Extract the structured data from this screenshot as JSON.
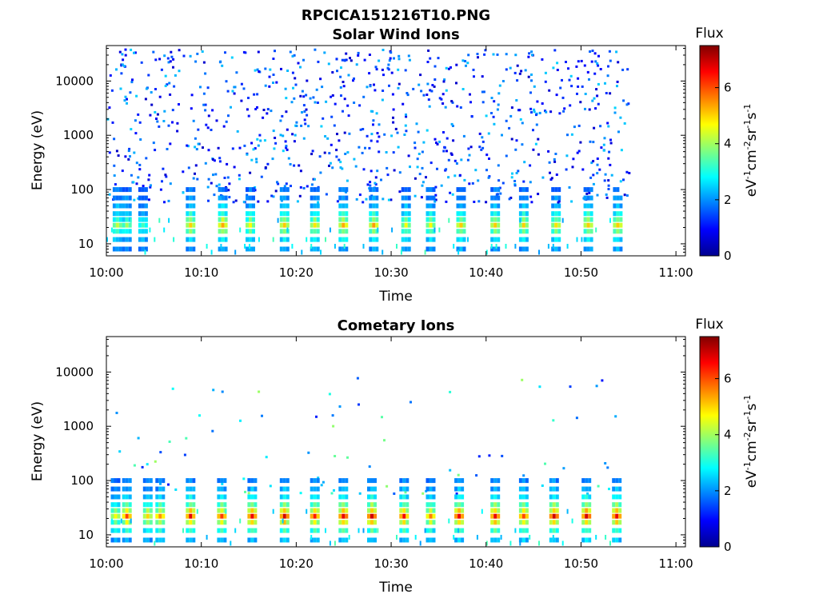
{
  "figure": {
    "title": "RPCICA151216T10.PNG"
  },
  "colormap": "jet",
  "chart_data": [
    {
      "type": "heatmap",
      "title": "Solar Wind Ions",
      "xlabel": "Time",
      "ylabel": "Energy (eV)",
      "xticks": [
        "10:00",
        "10:10",
        "10:20",
        "10:30",
        "10:40",
        "10:50",
        "11:00"
      ],
      "xlim_minutes": [
        0,
        61
      ],
      "yscale": "log",
      "yticks": [
        "10",
        "100",
        "1000",
        "10000"
      ],
      "ylim": [
        6,
        45000
      ],
      "data_end_minute": 55,
      "colorbar": {
        "title": "Flux",
        "label": "eV-1cm-2sr-1s-1",
        "ticks": [
          "0",
          "2",
          "4",
          "6"
        ],
        "range": [
          0,
          7.5
        ]
      },
      "low_energy_bursts": [
        {
          "t": 1.0,
          "peak_flux": 4.2
        },
        {
          "t": 2.0,
          "peak_flux": 3.8
        },
        {
          "t": 3.7,
          "peak_flux": 3.4
        },
        {
          "t": 8.7,
          "peak_flux": 5.0
        },
        {
          "t": 12.1,
          "peak_flux": 5.4
        },
        {
          "t": 15.0,
          "peak_flux": 4.6
        },
        {
          "t": 18.6,
          "peak_flux": 5.0
        },
        {
          "t": 21.8,
          "peak_flux": 4.8
        },
        {
          "t": 24.8,
          "peak_flux": 5.2
        },
        {
          "t": 28.0,
          "peak_flux": 5.2
        },
        {
          "t": 31.4,
          "peak_flux": 4.5
        },
        {
          "t": 34.0,
          "peak_flux": 4.5
        },
        {
          "t": 37.2,
          "peak_flux": 5.0
        },
        {
          "t": 40.8,
          "peak_flux": 5.0
        },
        {
          "t": 43.8,
          "peak_flux": 4.8
        },
        {
          "t": 47.2,
          "peak_flux": 4.8
        },
        {
          "t": 50.6,
          "peak_flux": 5.2
        },
        {
          "t": 53.7,
          "peak_flux": 5.0
        }
      ],
      "background": {
        "energy_range": [
          60,
          40000
        ],
        "flux_range": [
          0.5,
          2.5
        ]
      }
    },
    {
      "type": "heatmap",
      "title": "Cometary Ions",
      "xlabel": "Time",
      "ylabel": "Energy (eV)",
      "xticks": [
        "10:00",
        "10:10",
        "10:20",
        "10:30",
        "10:40",
        "10:50",
        "11:00"
      ],
      "xlim_minutes": [
        0,
        61
      ],
      "yscale": "log",
      "yticks": [
        "10",
        "100",
        "1000",
        "10000"
      ],
      "ylim": [
        6,
        45000
      ],
      "data_end_minute": 54,
      "colorbar": {
        "title": "Flux",
        "label": "eV-1cm-2sr-1s-1",
        "ticks": [
          "0",
          "2",
          "4",
          "6"
        ],
        "range": [
          0,
          7.5
        ]
      },
      "low_energy_bursts": [
        {
          "t": 0.8,
          "peak_flux": 4.8
        },
        {
          "t": 2.0,
          "peak_flux": 6.0
        },
        {
          "t": 4.2,
          "peak_flux": 5.2
        },
        {
          "t": 5.5,
          "peak_flux": 5.6
        },
        {
          "t": 8.7,
          "peak_flux": 6.6
        },
        {
          "t": 12.0,
          "peak_flux": 6.2
        },
        {
          "t": 15.2,
          "peak_flux": 6.6
        },
        {
          "t": 18.6,
          "peak_flux": 6.8
        },
        {
          "t": 21.8,
          "peak_flux": 6.4
        },
        {
          "t": 24.8,
          "peak_flux": 6.8
        },
        {
          "t": 27.8,
          "peak_flux": 6.8
        },
        {
          "t": 31.2,
          "peak_flux": 6.4
        },
        {
          "t": 34.0,
          "peak_flux": 5.6
        },
        {
          "t": 37.0,
          "peak_flux": 6.8
        },
        {
          "t": 40.8,
          "peak_flux": 6.8
        },
        {
          "t": 43.8,
          "peak_flux": 6.2
        },
        {
          "t": 47.0,
          "peak_flux": 6.8
        },
        {
          "t": 50.4,
          "peak_flux": 6.8
        },
        {
          "t": 53.6,
          "peak_flux": 6.8
        }
      ],
      "background": {
        "energy_range": [
          60,
          10000
        ],
        "flux_range": [
          1.0,
          4.0
        ]
      }
    }
  ]
}
